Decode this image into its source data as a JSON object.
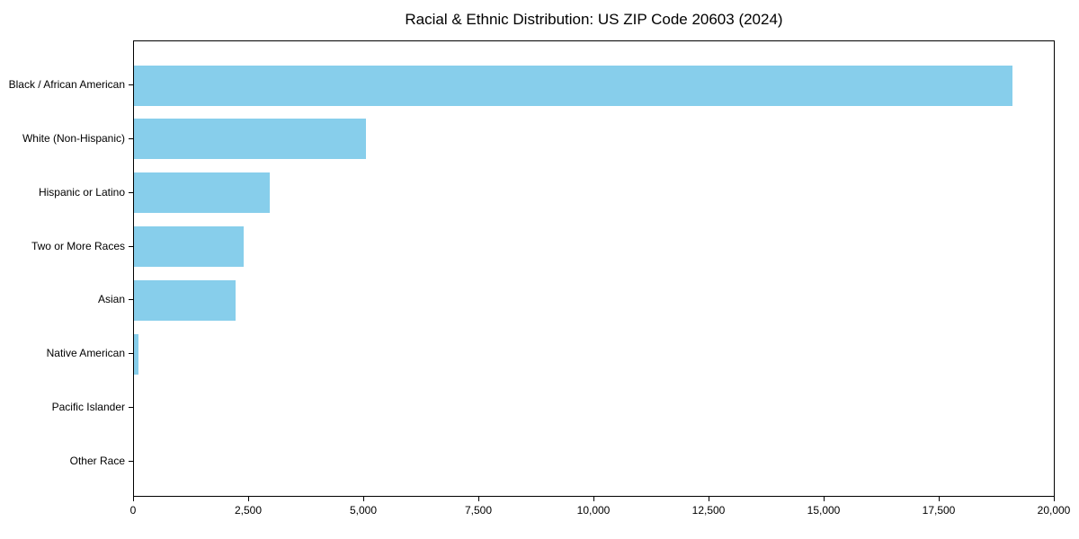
{
  "chart_data": {
    "type": "bar",
    "orientation": "horizontal",
    "title": "Racial & Ethnic Distribution: US ZIP Code 20603 (2024)",
    "categories": [
      "Black / African American",
      "White (Non-Hispanic)",
      "Hispanic or Latino",
      "Two or More Races",
      "Asian",
      "Native American",
      "Pacific Islander",
      "Other Race"
    ],
    "values": [
      19100,
      5050,
      2950,
      2380,
      2200,
      100,
      0,
      0
    ],
    "xlabel": "",
    "ylabel": "",
    "xlim": [
      0,
      20000
    ],
    "x_ticks": [
      0,
      2500,
      5000,
      7500,
      10000,
      12500,
      15000,
      17500,
      20000
    ],
    "x_tick_labels": [
      "0",
      "2,500",
      "5,000",
      "7,500",
      "10,000",
      "12,500",
      "15,000",
      "17,500",
      "20,000"
    ],
    "bar_color": "#87CEEB",
    "axis_color": "#000000",
    "background_color": "#FFFFFF",
    "grid": false,
    "legend": null
  }
}
